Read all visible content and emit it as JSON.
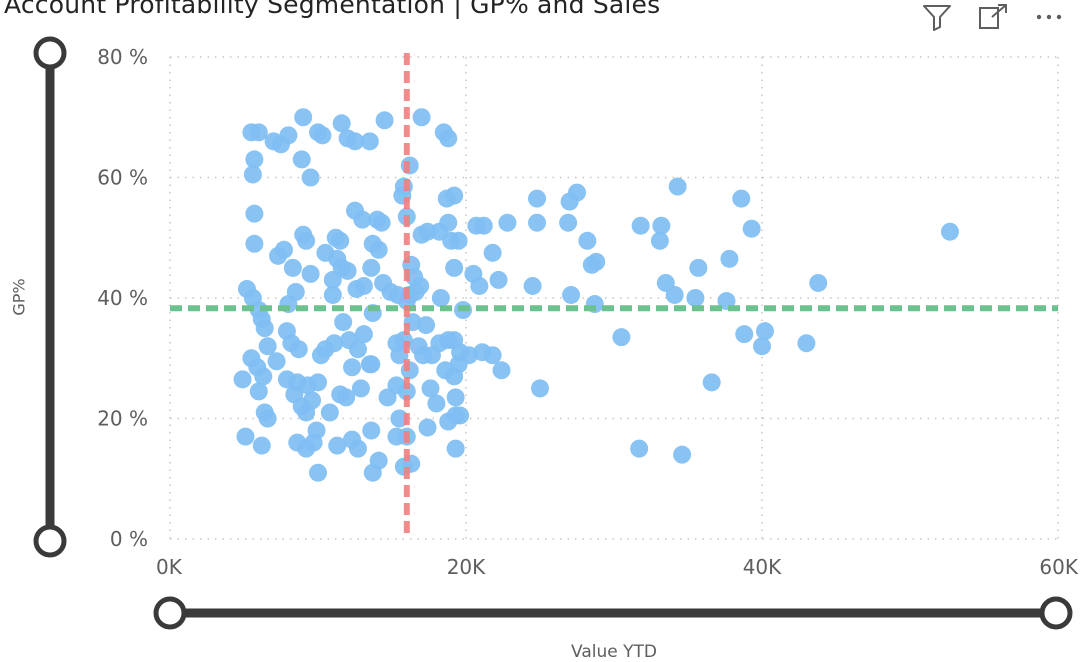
{
  "title": "Account Profitability Segmentation | GP% and Sales",
  "toolbar": {
    "icons": [
      "filter-icon",
      "focus-mode-icon",
      "more-options-icon"
    ]
  },
  "colors": {
    "points": "#7fbef3",
    "x_ref_line": "#f08080",
    "y_ref_line": "#6cc28e",
    "slider": "#3a3a3a"
  },
  "chart_data": {
    "type": "scatter",
    "title": "Account Profitability Segmentation | GP% and Sales",
    "xlabel": "Value YTD",
    "ylabel": "GP%",
    "xlim": [
      0,
      60000
    ],
    "ylim": [
      0,
      80
    ],
    "x_ticks": [
      0,
      20000,
      40000,
      60000
    ],
    "x_tick_labels": [
      "0K",
      "20K",
      "40K",
      "60K"
    ],
    "y_ticks": [
      0,
      20,
      40,
      60,
      80
    ],
    "y_tick_labels": [
      "0 %",
      "20 %",
      "40 %",
      "60 %",
      "80 %"
    ],
    "grid": true,
    "reference_lines": {
      "x_average": 16000,
      "y_average": 38.3
    },
    "points": [
      [
        5500,
        67.5
      ],
      [
        6000,
        67.5
      ],
      [
        7000,
        66
      ],
      [
        7500,
        65.5
      ],
      [
        8000,
        67
      ],
      [
        9000,
        70
      ],
      [
        10000,
        67.5
      ],
      [
        10300,
        67
      ],
      [
        11600,
        69
      ],
      [
        12000,
        66.5
      ],
      [
        12500,
        66
      ],
      [
        13500,
        66
      ],
      [
        14500,
        69.5
      ],
      [
        17000,
        70
      ],
      [
        18500,
        67.5
      ],
      [
        18800,
        66.5
      ],
      [
        5700,
        63
      ],
      [
        5600,
        60.5
      ],
      [
        8900,
        63
      ],
      [
        9500,
        60
      ],
      [
        16200,
        62
      ],
      [
        15800,
        58.5
      ],
      [
        15700,
        57
      ],
      [
        18700,
        56.5
      ],
      [
        19200,
        57
      ],
      [
        24800,
        56.5
      ],
      [
        27000,
        56
      ],
      [
        27500,
        57.5
      ],
      [
        34300,
        58.5
      ],
      [
        38600,
        56.5
      ],
      [
        5700,
        54
      ],
      [
        12500,
        54.5
      ],
      [
        13000,
        53
      ],
      [
        14000,
        53
      ],
      [
        14300,
        52.5
      ],
      [
        16000,
        53.5
      ],
      [
        17000,
        50.5
      ],
      [
        17400,
        51
      ],
      [
        18200,
        51
      ],
      [
        18800,
        52.5
      ],
      [
        19000,
        49.5
      ],
      [
        19500,
        49.5
      ],
      [
        20700,
        52
      ],
      [
        21200,
        52
      ],
      [
        22800,
        52.5
      ],
      [
        24800,
        52.5
      ],
      [
        26900,
        52.5
      ],
      [
        28200,
        49.5
      ],
      [
        31800,
        52
      ],
      [
        33200,
        52
      ],
      [
        33100,
        49.5
      ],
      [
        39300,
        51.5
      ],
      [
        52700,
        51
      ],
      [
        5700,
        49
      ],
      [
        7300,
        47
      ],
      [
        7700,
        48
      ],
      [
        9000,
        50.5
      ],
      [
        9200,
        49.5
      ],
      [
        10500,
        47.5
      ],
      [
        11200,
        50
      ],
      [
        11500,
        49.5
      ],
      [
        13700,
        49
      ],
      [
        14100,
        48
      ],
      [
        21800,
        47.5
      ],
      [
        8300,
        45
      ],
      [
        9500,
        44
      ],
      [
        11300,
        46.5
      ],
      [
        11600,
        45
      ],
      [
        12000,
        44.5
      ],
      [
        13600,
        45
      ],
      [
        16300,
        45.5
      ],
      [
        19200,
        45
      ],
      [
        20500,
        44
      ],
      [
        22200,
        43
      ],
      [
        28500,
        45.5
      ],
      [
        28800,
        46
      ],
      [
        35700,
        45
      ],
      [
        37800,
        46.5
      ],
      [
        5200,
        41.5
      ],
      [
        5600,
        40
      ],
      [
        6000,
        38
      ],
      [
        8500,
        41
      ],
      [
        8000,
        39
      ],
      [
        11000,
        43
      ],
      [
        11000,
        40.5
      ],
      [
        12600,
        41.5
      ],
      [
        13100,
        42
      ],
      [
        14400,
        42.5
      ],
      [
        14900,
        41
      ],
      [
        15400,
        40.5
      ],
      [
        16000,
        39.5
      ],
      [
        16200,
        40.5
      ],
      [
        16600,
        41
      ],
      [
        16900,
        42
      ],
      [
        16500,
        43.5
      ],
      [
        18300,
        40
      ],
      [
        20900,
        42
      ],
      [
        24500,
        42
      ],
      [
        27100,
        40.5
      ],
      [
        28700,
        39
      ],
      [
        33500,
        42.5
      ],
      [
        34100,
        40.5
      ],
      [
        35500,
        40
      ],
      [
        37600,
        39.5
      ],
      [
        43800,
        42.5
      ],
      [
        6200,
        36.5
      ],
      [
        6400,
        35
      ],
      [
        7900,
        34.5
      ],
      [
        8200,
        32.5
      ],
      [
        8700,
        31.5
      ],
      [
        10200,
        30.5
      ],
      [
        10500,
        31.5
      ],
      [
        11100,
        32.5
      ],
      [
        11700,
        36
      ],
      [
        12100,
        33
      ],
      [
        12700,
        31.5
      ],
      [
        13100,
        34
      ],
      [
        13500,
        29
      ],
      [
        13700,
        37.5
      ],
      [
        15300,
        32.5
      ],
      [
        15800,
        33
      ],
      [
        16400,
        36
      ],
      [
        16800,
        32
      ],
      [
        17300,
        35.5
      ],
      [
        17700,
        30.5
      ],
      [
        18200,
        32.5
      ],
      [
        18800,
        33
      ],
      [
        19200,
        33
      ],
      [
        19600,
        31
      ],
      [
        19800,
        38
      ],
      [
        20200,
        30.5
      ],
      [
        21100,
        31
      ],
      [
        21800,
        30.5
      ],
      [
        30500,
        33.5
      ],
      [
        38800,
        34
      ],
      [
        40200,
        34.5
      ],
      [
        40000,
        32
      ],
      [
        43000,
        32.5
      ],
      [
        5500,
        30
      ],
      [
        5900,
        28.5
      ],
      [
        6300,
        27
      ],
      [
        6600,
        32
      ],
      [
        7200,
        29.5
      ],
      [
        7900,
        26.5
      ],
      [
        8600,
        26
      ],
      [
        9300,
        25.5
      ],
      [
        10000,
        26
      ],
      [
        12300,
        28.5
      ],
      [
        13600,
        29
      ],
      [
        15500,
        30.5
      ],
      [
        16200,
        28
      ],
      [
        17100,
        30.5
      ],
      [
        18600,
        28
      ],
      [
        19200,
        27
      ],
      [
        19500,
        29
      ],
      [
        22400,
        28
      ],
      [
        4900,
        26.5
      ],
      [
        6000,
        24.5
      ],
      [
        8400,
        24
      ],
      [
        8900,
        22
      ],
      [
        9600,
        23
      ],
      [
        11500,
        24
      ],
      [
        11900,
        23.5
      ],
      [
        12900,
        25
      ],
      [
        14700,
        23.5
      ],
      [
        15300,
        25.5
      ],
      [
        16000,
        24.5
      ],
      [
        17600,
        25
      ],
      [
        18000,
        22.5
      ],
      [
        19300,
        23.5
      ],
      [
        25000,
        25
      ],
      [
        36600,
        26
      ],
      [
        6400,
        21
      ],
      [
        6600,
        20
      ],
      [
        9200,
        21
      ],
      [
        10800,
        21
      ],
      [
        15500,
        20
      ],
      [
        18800,
        19.5
      ],
      [
        19300,
        20.5
      ],
      [
        19600,
        20.5
      ],
      [
        5100,
        17
      ],
      [
        6200,
        15.5
      ],
      [
        8600,
        16
      ],
      [
        9200,
        15
      ],
      [
        9700,
        16
      ],
      [
        9900,
        18
      ],
      [
        11300,
        15.5
      ],
      [
        12300,
        16.5
      ],
      [
        12700,
        15
      ],
      [
        13600,
        18
      ],
      [
        15300,
        17
      ],
      [
        16000,
        17
      ],
      [
        17400,
        18.5
      ],
      [
        19300,
        15
      ],
      [
        31700,
        15
      ],
      [
        34600,
        14
      ],
      [
        10000,
        11
      ],
      [
        13700,
        11
      ],
      [
        14100,
        13
      ],
      [
        15800,
        12
      ],
      [
        16300,
        12.5
      ]
    ]
  }
}
